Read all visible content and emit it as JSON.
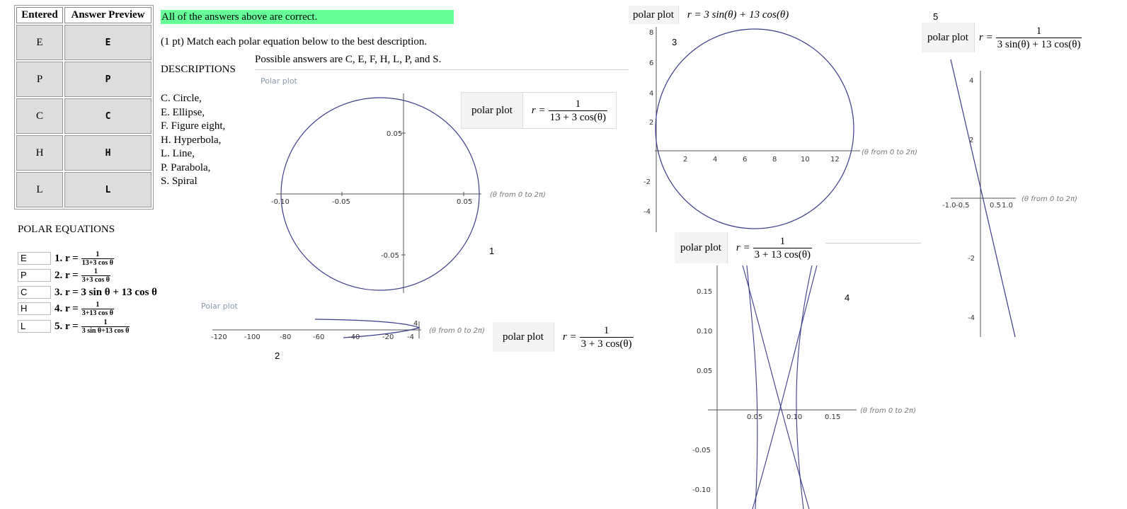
{
  "answer_table": {
    "headers": [
      "Entered",
      "Answer Preview"
    ],
    "rows": [
      {
        "entered": "E",
        "preview": "E"
      },
      {
        "entered": "P",
        "preview": "P"
      },
      {
        "entered": "C",
        "preview": "C"
      },
      {
        "entered": "H",
        "preview": "H"
      },
      {
        "entered": "L",
        "preview": "L"
      }
    ]
  },
  "banner": "All of the answers above are correct.",
  "prompt": "(1 pt) Match each polar equation below to the best description.",
  "possible": "Possible answers are C, E, F, H, L, P, and S.",
  "descriptions": {
    "heading": "DESCRIPTIONS",
    "items": [
      "C. Circle,",
      "E. Ellipse,",
      "F. Figure eight,",
      "H. Hyperbola,",
      "L. Line,",
      "P. Parabola,",
      "S. Spiral"
    ]
  },
  "equations": {
    "heading": "POLAR EQUATIONS",
    "items": [
      {
        "value": "E",
        "label": "1. r =",
        "num": "1",
        "den": "13+3 cos θ"
      },
      {
        "value": "P",
        "label": "2. r =",
        "num": "1",
        "den": "3+3 cos θ"
      },
      {
        "value": "C",
        "label": "3. r = 3 sin θ + 13 cos θ",
        "num": "",
        "den": ""
      },
      {
        "value": "H",
        "label": "4. r =",
        "num": "1",
        "den": "3+13 cos θ"
      },
      {
        "value": "L",
        "label": "5. r =",
        "num": "1",
        "den": "3 sin θ+13 cos θ"
      }
    ]
  },
  "plots": {
    "polar_plot_caption": "Polar plot",
    "pp_label": "polar plot",
    "r_eq": "r =",
    "theta_range": "(θ from 0 to 2π)",
    "p1": {
      "number": "1",
      "num": "1",
      "den": "13 + 3 cos(θ)"
    },
    "p2": {
      "number": "2",
      "num": "1",
      "den": "3 + 3 cos(θ)"
    },
    "p3": {
      "number": "3",
      "formula": "r = 3 sin(θ) + 13 cos(θ)"
    },
    "p4": {
      "number": "4",
      "num": "1",
      "den": "3 + 13 cos(θ)"
    },
    "p5": {
      "number": "5",
      "num": "1",
      "den": "3 sin(θ) + 13 cos(θ)"
    }
  },
  "chart_data": [
    {
      "type": "line",
      "name": "plot1",
      "xticks": [
        "-0.10",
        "-0.05",
        "0.05"
      ],
      "yticks": [
        "0.05",
        "-0.05"
      ],
      "xlim": [
        -0.1,
        0.05
      ],
      "ylim": [
        -0.08,
        0.08
      ]
    },
    {
      "type": "line",
      "name": "plot2",
      "xticks": [
        "-120",
        "-100",
        "-80",
        "-60",
        "-40",
        "-20"
      ],
      "yticks": [
        "4",
        "-4"
      ]
    },
    {
      "type": "line",
      "name": "plot3",
      "xticks": [
        "2",
        "4",
        "6",
        "8",
        "10",
        "12"
      ],
      "yticks": [
        "8",
        "6",
        "4",
        "2",
        "-2",
        "-4"
      ]
    },
    {
      "type": "line",
      "name": "plot4",
      "xticks": [
        "0.05",
        "0.10",
        "0.15"
      ],
      "yticks": [
        "0.15",
        "0.10",
        "0.05",
        "-0.05",
        "-0.10"
      ]
    },
    {
      "type": "line",
      "name": "plot5",
      "xticks": [
        "-1.0",
        "-0.5",
        "0.5",
        "1.0"
      ],
      "yticks": [
        "4",
        "2",
        "-2",
        "-4"
      ]
    }
  ],
  "colors": {
    "curve": "#3b3b8c",
    "banner": "#66ff99"
  }
}
